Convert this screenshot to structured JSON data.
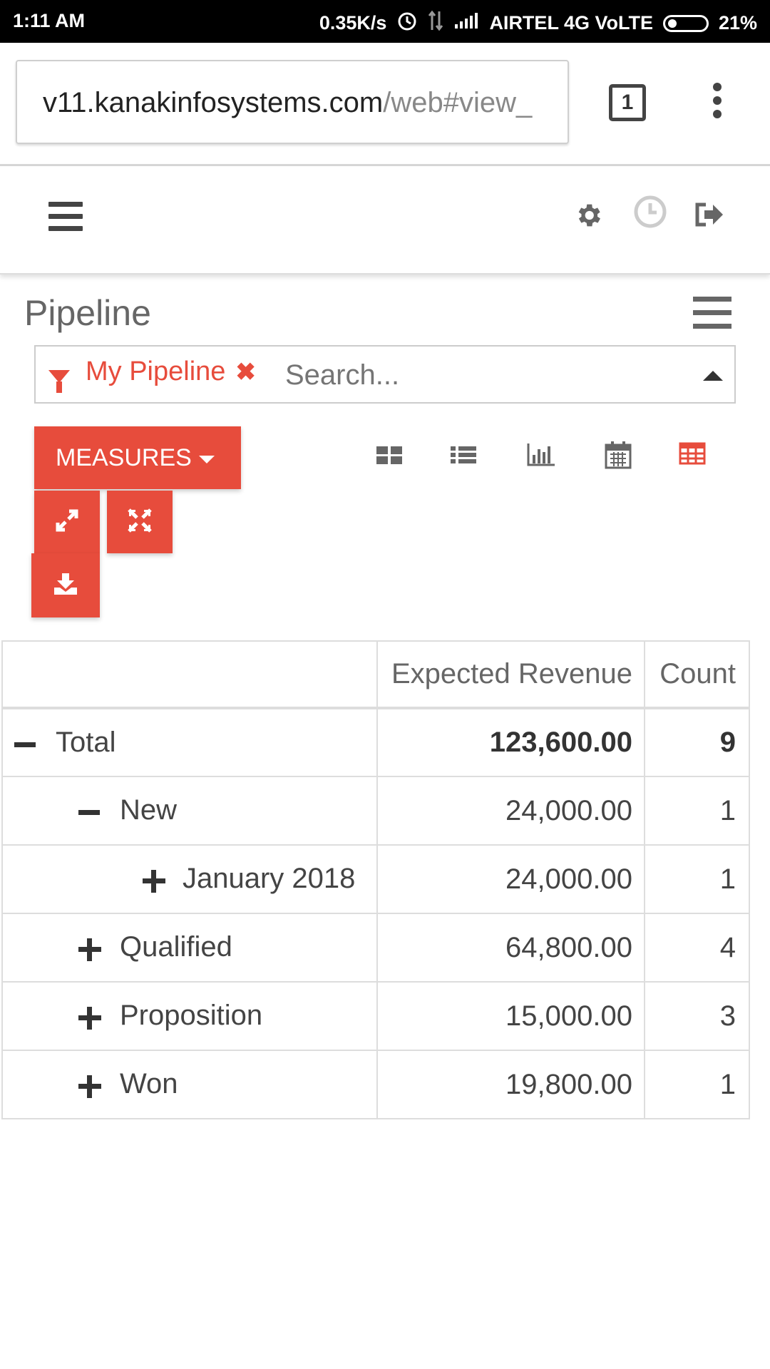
{
  "status_bar": {
    "time": "1:11 AM",
    "network_speed": "0.35K/s",
    "carrier": "AIRTEL 4G VoLTE",
    "battery": "21%"
  },
  "browser": {
    "url_host": "v11.kanakinfosystems.com",
    "url_path": "/web#view_",
    "tab_count": "1"
  },
  "page": {
    "title": "Pipeline"
  },
  "search": {
    "facet_label": "My Pipeline",
    "placeholder": "Search..."
  },
  "toolbar": {
    "measures_label": "MEASURES"
  },
  "view_switcher": [
    "kanban",
    "list",
    "graph",
    "calendar",
    "pivot"
  ],
  "colors": {
    "accent": "#e74c3c",
    "active_view": "#e74c3c",
    "icon_gray": "#666666"
  },
  "pivot": {
    "headers": [
      "",
      "Expected Revenue",
      "Count"
    ],
    "rows": [
      {
        "label": "Total",
        "revenue": "123,600.00",
        "count": "9",
        "toggle": "minus",
        "level": 0
      },
      {
        "label": "New",
        "revenue": "24,000.00",
        "count": "1",
        "toggle": "minus",
        "level": 1
      },
      {
        "label": "January 2018",
        "revenue": "24,000.00",
        "count": "1",
        "toggle": "plus",
        "level": 2
      },
      {
        "label": "Qualified",
        "revenue": "64,800.00",
        "count": "4",
        "toggle": "plus",
        "level": 1
      },
      {
        "label": "Proposition",
        "revenue": "15,000.00",
        "count": "3",
        "toggle": "plus",
        "level": 1
      },
      {
        "label": "Won",
        "revenue": "19,800.00",
        "count": "1",
        "toggle": "plus",
        "level": 1
      }
    ]
  }
}
